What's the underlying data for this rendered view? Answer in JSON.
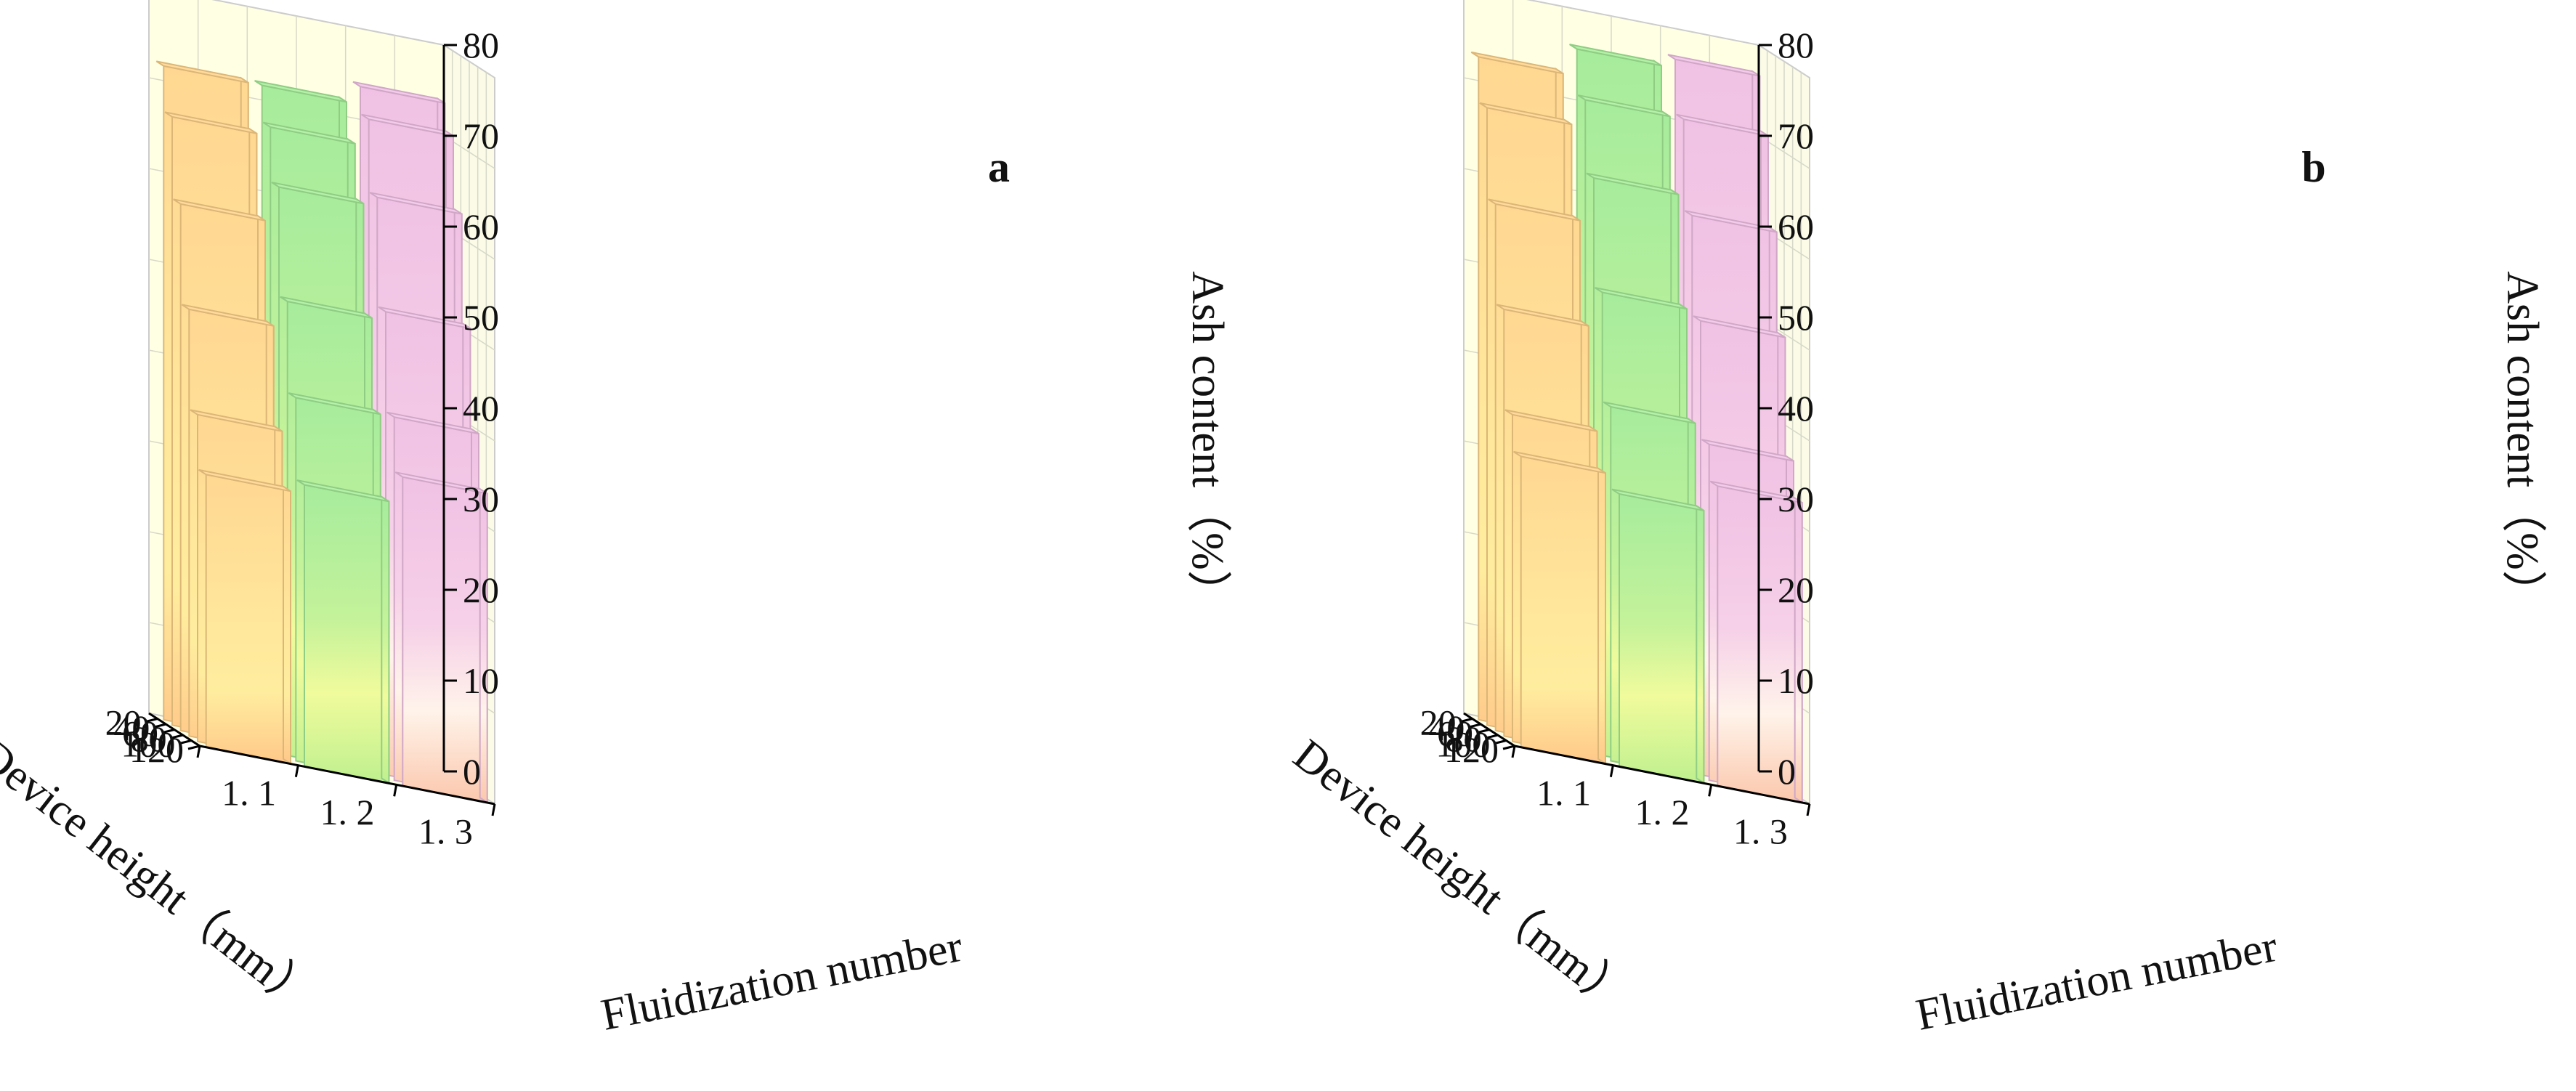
{
  "chart_data": [
    {
      "type": "bar3d",
      "panel_label": "a",
      "xlabel": "Fluidization number",
      "ylabel": "Device height（mm）",
      "zlabel": "Ash content（%）",
      "fluidization_ticks": [
        "1. 1",
        "1. 2",
        "1. 3"
      ],
      "height_ticks": [
        "20",
        "40",
        "60",
        "80",
        "100",
        "120"
      ],
      "z_ticks": [
        "0",
        "10",
        "20",
        "30",
        "40",
        "50",
        "60",
        "70",
        "80"
      ],
      "zlim": [
        0,
        80
      ],
      "series": [
        {
          "name": "1. 1",
          "color": "#ffd48a",
          "values": [
            72,
            67,
            58,
            47,
            36,
            30
          ]
        },
        {
          "name": "1. 2",
          "color": "#a8ee9a",
          "values": [
            72,
            68,
            62,
            50,
            40,
            31
          ]
        },
        {
          "name": "1. 3",
          "color": "#f2c2e6",
          "values": [
            74,
            71,
            63,
            51,
            40,
            34
          ]
        }
      ]
    },
    {
      "type": "bar3d",
      "panel_label": "b",
      "xlabel": "Fluidization number",
      "ylabel": "Device height（mm）",
      "zlabel": "Ash content（%）",
      "fluidization_ticks": [
        "1. 1",
        "1. 2",
        "1. 3"
      ],
      "height_ticks": [
        "20",
        "40",
        "60",
        "80",
        "100",
        "120"
      ],
      "z_ticks": [
        "0",
        "10",
        "20",
        "30",
        "40",
        "50",
        "60",
        "70",
        "80"
      ],
      "zlim": [
        0,
        80
      ],
      "series": [
        {
          "name": "1. 1",
          "color": "#ffd48a",
          "values": [
            73,
            68,
            58,
            47,
            36,
            32
          ]
        },
        {
          "name": "1. 2",
          "color": "#a8ee9a",
          "values": [
            76,
            71,
            63,
            51,
            39,
            30
          ]
        },
        {
          "name": "1. 3",
          "color": "#f2c2e6",
          "values": [
            77,
            71,
            61,
            50,
            37,
            33
          ]
        }
      ]
    }
  ]
}
